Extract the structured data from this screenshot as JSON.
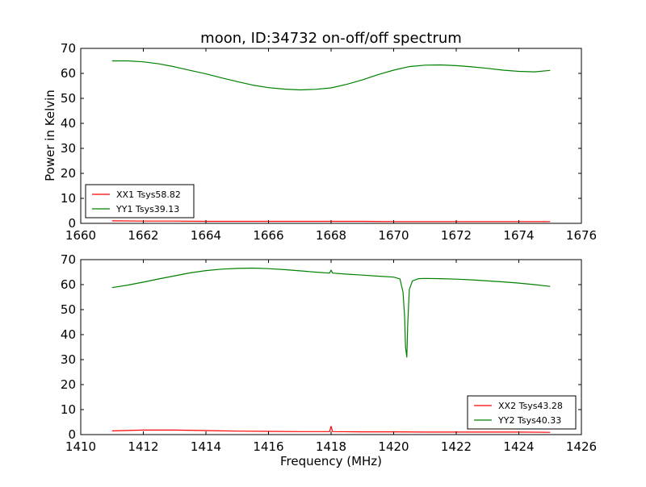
{
  "figure": {
    "title": "moon, ID:34732 on-off/off spectrum",
    "ylabel": "Power in Kelvin",
    "xlabel": "Frequency (MHz)"
  },
  "chart_data": [
    {
      "type": "line",
      "xlim": [
        1660,
        1676
      ],
      "ylim": [
        0,
        70
      ],
      "xticks": [
        1660,
        1662,
        1664,
        1666,
        1668,
        1670,
        1672,
        1674,
        1676
      ],
      "yticks": [
        0,
        10,
        20,
        30,
        40,
        50,
        60,
        70
      ],
      "legend_position": "lower-left",
      "series": [
        {
          "name": "XX1 Tsys58.82",
          "color": "#ff0000",
          "x": [
            1661.0,
            1662.0,
            1663.0,
            1664.0,
            1665.0,
            1666.0,
            1667.0,
            1668.0,
            1669.0,
            1670.0,
            1671.0,
            1672.0,
            1673.0,
            1674.0,
            1675.0
          ],
          "y": [
            1.0,
            0.9,
            0.9,
            0.8,
            0.8,
            0.8,
            0.8,
            0.8,
            0.8,
            0.7,
            0.7,
            0.7,
            0.7,
            0.7,
            0.7
          ]
        },
        {
          "name": "YY1 Tsys39.13",
          "color": "#008000",
          "x": [
            1661.0,
            1661.5,
            1662.0,
            1662.5,
            1663.0,
            1663.5,
            1664.0,
            1664.5,
            1665.0,
            1665.5,
            1666.0,
            1666.5,
            1667.0,
            1667.5,
            1668.0,
            1668.5,
            1669.0,
            1669.5,
            1670.0,
            1670.5,
            1671.0,
            1671.5,
            1672.0,
            1672.5,
            1673.0,
            1673.5,
            1674.0,
            1674.5,
            1675.0
          ],
          "y": [
            65.0,
            65.0,
            64.6,
            63.8,
            62.6,
            61.2,
            59.8,
            58.2,
            56.7,
            55.3,
            54.3,
            53.7,
            53.4,
            53.6,
            54.2,
            55.6,
            57.4,
            59.5,
            61.3,
            62.7,
            63.3,
            63.4,
            63.1,
            62.6,
            62.0,
            61.3,
            60.8,
            60.6,
            61.2
          ]
        }
      ]
    },
    {
      "type": "line",
      "xlim": [
        1410,
        1426
      ],
      "ylim": [
        0,
        70
      ],
      "xticks": [
        1410,
        1412,
        1414,
        1416,
        1418,
        1420,
        1422,
        1424,
        1426
      ],
      "yticks": [
        0,
        10,
        20,
        30,
        40,
        50,
        60,
        70
      ],
      "legend_position": "lower-right",
      "series": [
        {
          "name": "XX2 Tsys43.28",
          "color": "#ff0000",
          "x": [
            1411.0,
            1412.0,
            1413.0,
            1414.0,
            1415.0,
            1416.0,
            1417.0,
            1417.95,
            1418.0,
            1418.05,
            1419.0,
            1420.0,
            1421.0,
            1422.0,
            1423.0,
            1424.0,
            1425.0
          ],
          "y": [
            1.5,
            1.8,
            1.8,
            1.6,
            1.4,
            1.3,
            1.2,
            1.2,
            3.3,
            1.2,
            1.1,
            1.1,
            1.0,
            1.0,
            1.0,
            1.0,
            0.9
          ]
        },
        {
          "name": "YY2 Tsys40.33",
          "color": "#008000",
          "x": [
            1411.0,
            1411.5,
            1412.0,
            1412.5,
            1413.0,
            1413.5,
            1414.0,
            1414.5,
            1415.0,
            1415.5,
            1416.0,
            1416.5,
            1417.0,
            1417.5,
            1417.95,
            1418.0,
            1418.05,
            1418.5,
            1419.0,
            1419.5,
            1420.0,
            1420.2,
            1420.3,
            1420.35,
            1420.38,
            1420.42,
            1420.45,
            1420.5,
            1420.6,
            1420.8,
            1421.0,
            1421.5,
            1422.0,
            1422.5,
            1423.0,
            1423.5,
            1424.0,
            1424.5,
            1425.0
          ],
          "y": [
            58.8,
            59.8,
            61.0,
            62.3,
            63.5,
            64.7,
            65.6,
            66.2,
            66.5,
            66.6,
            66.4,
            66.0,
            65.5,
            65.0,
            64.6,
            65.8,
            64.6,
            64.2,
            63.8,
            63.4,
            63.0,
            62.3,
            57.0,
            47.0,
            35.0,
            31.0,
            44.0,
            58.0,
            61.5,
            62.4,
            62.5,
            62.4,
            62.2,
            61.9,
            61.5,
            61.1,
            60.6,
            60.0,
            59.3
          ]
        }
      ]
    }
  ]
}
